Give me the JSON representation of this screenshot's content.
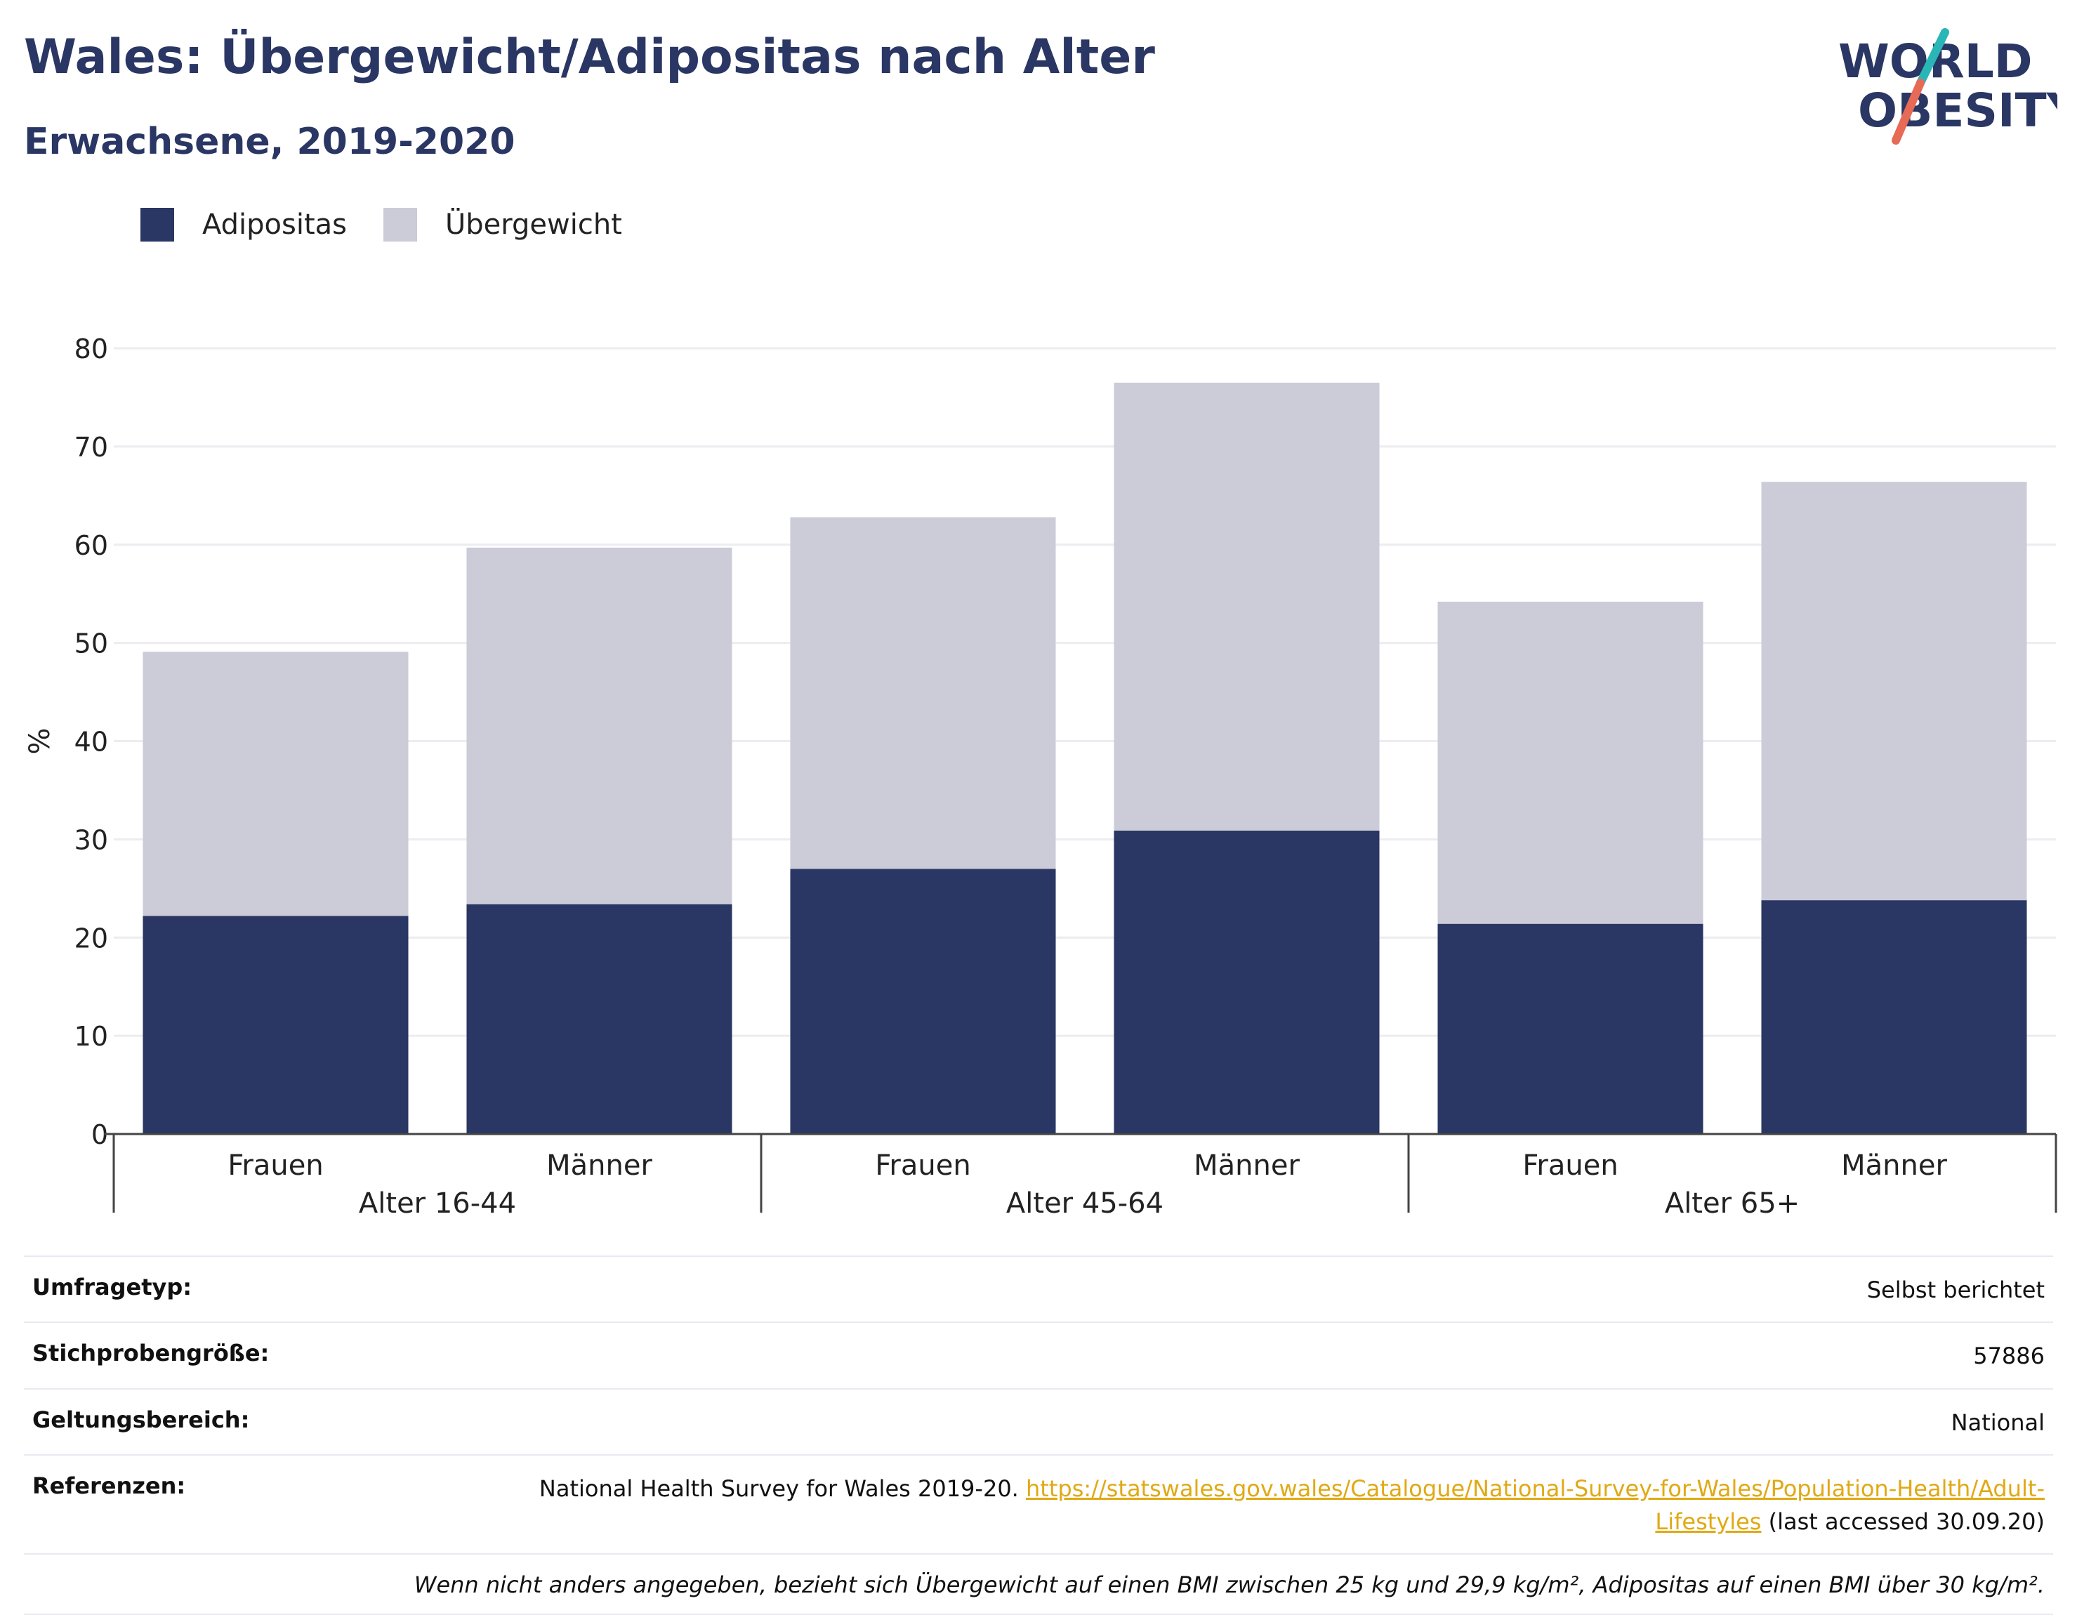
{
  "header": {
    "title": "Wales: Übergewicht/Adipositas nach Alter",
    "subtitle": "Erwachsene, 2019-2020"
  },
  "logo": {
    "line1": "WORLD",
    "line2": "OBESITY",
    "accent_teal": "#2ab6b6",
    "accent_coral": "#e66a55"
  },
  "colors": {
    "adipositas": "#2a3663",
    "uebergewicht": "#cbccd8"
  },
  "chart_data": {
    "type": "bar",
    "stacked": true,
    "ylabel": "%",
    "ylim": [
      0,
      80
    ],
    "yticks": [
      0,
      10,
      20,
      30,
      40,
      50,
      60,
      70,
      80
    ],
    "grid": true,
    "legend_position": "top-left",
    "groups": [
      "Alter 16-44",
      "Alter 45-64",
      "Alter 65+"
    ],
    "categories": [
      "Frauen",
      "Männer",
      "Frauen",
      "Männer",
      "Frauen",
      "Männer"
    ],
    "series": [
      {
        "name": "Adipositas",
        "values": [
          22.2,
          23.4,
          27.0,
          30.9,
          21.4,
          23.8
        ]
      },
      {
        "name": "Übergewicht",
        "values": [
          26.9,
          36.3,
          35.8,
          45.6,
          32.8,
          42.6
        ]
      }
    ]
  },
  "info": {
    "rows": [
      {
        "label": "Umfragetyp:",
        "value": "Selbst berichtet"
      },
      {
        "label": "Stichprobengröße:",
        "value": "57886"
      },
      {
        "label": "Geltungsbereich:",
        "value": "National"
      }
    ],
    "references_label": "Referenzen:",
    "references_text": "National Health Survey for Wales 2019-20. ",
    "references_link": "https://statswales.gov.wales/Catalogue/National-Survey-for-Wales/Population-Health/Adult-Lifestyles",
    "references_suffix": " (last accessed 30.09.20)",
    "note": "Wenn nicht anders angegeben, bezieht sich Übergewicht auf einen BMI zwischen 25 kg und 29,9 kg/m², Adipositas auf einen BMI über 30 kg/m²."
  }
}
